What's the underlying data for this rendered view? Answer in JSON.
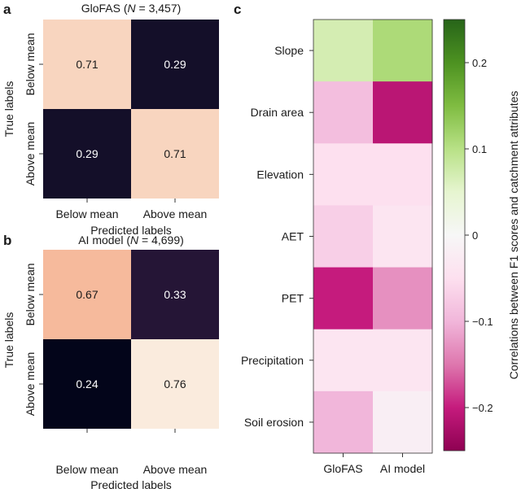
{
  "chart_data": [
    {
      "panel": "a",
      "type": "heatmap",
      "title_prefix": "GloFAS (",
      "title_n": "N",
      "title_suffix": " = 3,457)",
      "xlabel": "Predicted labels",
      "ylabel": "True labels",
      "x_categories": [
        "Below mean",
        "Above mean"
      ],
      "y_categories": [
        "Below mean",
        "Above mean"
      ],
      "values": [
        [
          0.71,
          0.29
        ],
        [
          0.29,
          0.71
        ]
      ],
      "value_labels": [
        [
          "0.71",
          "0.29"
        ],
        [
          "0.29",
          "0.71"
        ]
      ]
    },
    {
      "panel": "b",
      "type": "heatmap",
      "title_prefix": "AI model (",
      "title_n": "N",
      "title_suffix": " = 4,699)",
      "xlabel": "Predicted labels",
      "ylabel": "True labels",
      "x_categories": [
        "Below mean",
        "Above mean"
      ],
      "y_categories": [
        "Below mean",
        "Above mean"
      ],
      "values": [
        [
          0.67,
          0.33
        ],
        [
          0.24,
          0.76
        ]
      ],
      "value_labels": [
        [
          "0.67",
          "0.33"
        ],
        [
          "0.24",
          "0.76"
        ]
      ]
    },
    {
      "panel": "c",
      "type": "heatmap",
      "x_categories": [
        "GloFAS",
        "AI model"
      ],
      "y_categories": [
        "Slope",
        "Drain area",
        "Elevation",
        "AET",
        "PET",
        "Precipitation",
        "Soil erosion"
      ],
      "values": [
        [
          0.07,
          0.11
        ],
        [
          -0.09,
          -0.21
        ],
        [
          -0.05,
          -0.05
        ],
        [
          -0.07,
          -0.04
        ],
        [
          -0.2,
          -0.13
        ],
        [
          -0.04,
          -0.04
        ],
        [
          -0.1,
          -0.02
        ]
      ],
      "colorbar": {
        "label": "Correlations between F1 scores and catchment attributes",
        "vmin": -0.25,
        "vmax": 0.25,
        "ticks": [
          0.2,
          0.1,
          0,
          -0.1,
          -0.2
        ],
        "tick_labels": [
          "0.2",
          "0.1",
          "0",
          "−0.1",
          "−0.2"
        ]
      }
    }
  ],
  "panel_letters": [
    "a",
    "b",
    "c"
  ]
}
